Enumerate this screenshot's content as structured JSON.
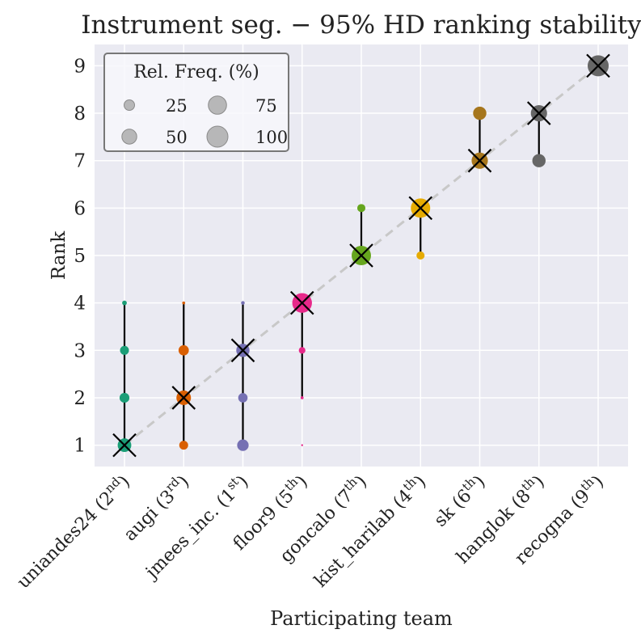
{
  "chart_data": {
    "type": "scatter",
    "title": "Instrument seg. − 95% HD ranking stability",
    "xlabel": "Participating team",
    "ylabel": "Rank",
    "ylim": [
      0.55,
      9.45
    ],
    "yticks": [
      "1",
      "2",
      "3",
      "4",
      "5",
      "6",
      "7",
      "8",
      "9"
    ],
    "grid": true,
    "teams": [
      {
        "name": "uniandes24",
        "place": "2",
        "suffix": "nd",
        "color": "#1b9e77",
        "official_rank": 1,
        "min_rank": 1,
        "max_rank": 4,
        "ranks": [
          {
            "rank": 1,
            "freq": 42
          },
          {
            "rank": 2,
            "freq": 22
          },
          {
            "rank": 3,
            "freq": 18
          },
          {
            "rank": 4,
            "freq": 5
          }
        ]
      },
      {
        "name": "augi",
        "place": "3",
        "suffix": "rd",
        "color": "#d95f02",
        "official_rank": 2,
        "min_rank": 1,
        "max_rank": 4,
        "ranks": [
          {
            "rank": 1,
            "freq": 18
          },
          {
            "rank": 2,
            "freq": 48
          },
          {
            "rank": 3,
            "freq": 24
          },
          {
            "rank": 4,
            "freq": 2
          }
        ]
      },
      {
        "name": "jmees_inc.",
        "place": "1",
        "suffix": "st",
        "color": "#7570b3",
        "official_rank": 3,
        "min_rank": 1,
        "max_rank": 4,
        "ranks": [
          {
            "rank": 1,
            "freq": 30
          },
          {
            "rank": 2,
            "freq": 20
          },
          {
            "rank": 3,
            "freq": 40
          },
          {
            "rank": 4,
            "freq": 3
          }
        ]
      },
      {
        "name": "floor9",
        "place": "5",
        "suffix": "th",
        "color": "#e7298a",
        "official_rank": 4,
        "min_rank": 2,
        "max_rank": 4,
        "ranks": [
          {
            "rank": 1,
            "freq": 0.5
          },
          {
            "rank": 2,
            "freq": 2
          },
          {
            "rank": 3,
            "freq": 10
          },
          {
            "rank": 4,
            "freq": 88
          }
        ]
      },
      {
        "name": "goncalo",
        "place": "7",
        "suffix": "th",
        "color": "#66a61e",
        "official_rank": 5,
        "min_rank": 5,
        "max_rank": 6,
        "ranks": [
          {
            "rank": 5,
            "freq": 85
          },
          {
            "rank": 6,
            "freq": 15
          }
        ]
      },
      {
        "name": "kist_harilab",
        "place": "4",
        "suffix": "th",
        "color": "#e6ab02",
        "official_rank": 6,
        "min_rank": 5,
        "max_rank": 6,
        "ranks": [
          {
            "rank": 5,
            "freq": 15
          },
          {
            "rank": 6,
            "freq": 85
          }
        ]
      },
      {
        "name": "sk",
        "place": "6",
        "suffix": "th",
        "color": "#a6761d",
        "official_rank": 7,
        "min_rank": 7,
        "max_rank": 8,
        "ranks": [
          {
            "rank": 7,
            "freq": 60
          },
          {
            "rank": 8,
            "freq": 40
          }
        ]
      },
      {
        "name": "hanglok",
        "place": "8",
        "suffix": "th",
        "color": "#666666",
        "official_rank": 8,
        "min_rank": 7,
        "max_rank": 8,
        "ranks": [
          {
            "rank": 7,
            "freq": 40
          },
          {
            "rank": 8,
            "freq": 60
          }
        ]
      },
      {
        "name": "recogna",
        "place": "9",
        "suffix": "th",
        "color": "#666666",
        "official_rank": 9,
        "min_rank": 9,
        "max_rank": 9,
        "ranks": [
          {
            "rank": 9,
            "freq": 100
          }
        ]
      }
    ],
    "legend": {
      "title": "Rel. Freq. (%)",
      "position": "top-left",
      "entries": [
        {
          "label": "25",
          "freq": 25
        },
        {
          "label": "75",
          "freq": 75
        },
        {
          "label": "50",
          "freq": 50
        },
        {
          "label": "100",
          "freq": 100
        }
      ]
    }
  }
}
